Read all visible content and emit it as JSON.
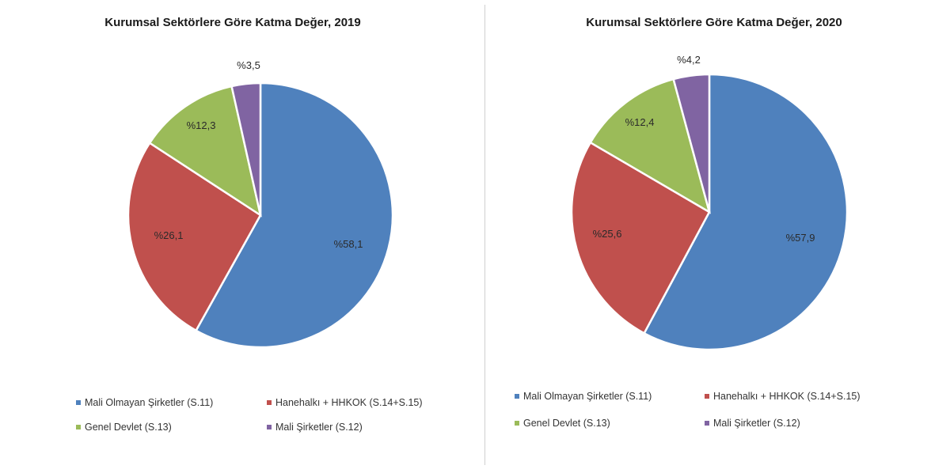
{
  "colors": {
    "mali_olmayan": "#4F81BD",
    "hanehalki": "#C0504D",
    "genel_devlet": "#9BBB59",
    "mali_sirketler": "#8064A2"
  },
  "legend_labels": {
    "mali_olmayan": "Mali Olmayan Şirketler (S.11)",
    "hanehalki": "Hanehalkı + HHKOK (S.14+S.15)",
    "genel_devlet": "Genel Devlet (S.13)",
    "mali_sirketler": "Mali Şirketler (S.12)"
  },
  "chart_data": [
    {
      "type": "pie",
      "title": "Kurumsal Sektörlere Göre Katma Değer, 2019",
      "categories": [
        "Mali Olmayan Şirketler (S.11)",
        "Hanehalkı + HHKOK (S.14+S.15)",
        "Genel Devlet (S.13)",
        "Mali Şirketler (S.12)"
      ],
      "values": [
        58.1,
        26.1,
        12.3,
        3.5
      ],
      "labels": [
        "%58,1",
        "%26,1",
        "%12,3",
        "%3,5"
      ],
      "colors": [
        "#4F81BD",
        "#C0504D",
        "#9BBB59",
        "#8064A2"
      ],
      "legend_position": "bottom"
    },
    {
      "type": "pie",
      "title": "Kurumsal Sektörlere Göre Katma Değer, 2020",
      "categories": [
        "Mali Olmayan Şirketler (S.11)",
        "Hanehalkı + HHKOK (S.14+S.15)",
        "Genel Devlet (S.13)",
        "Mali Şirketler (S.12)"
      ],
      "values": [
        57.9,
        25.6,
        12.4,
        4.2
      ],
      "labels": [
        "%57,9",
        "%25,6",
        "%12,4",
        "%4,2"
      ],
      "colors": [
        "#4F81BD",
        "#C0504D",
        "#9BBB59",
        "#8064A2"
      ],
      "legend_position": "bottom"
    }
  ]
}
